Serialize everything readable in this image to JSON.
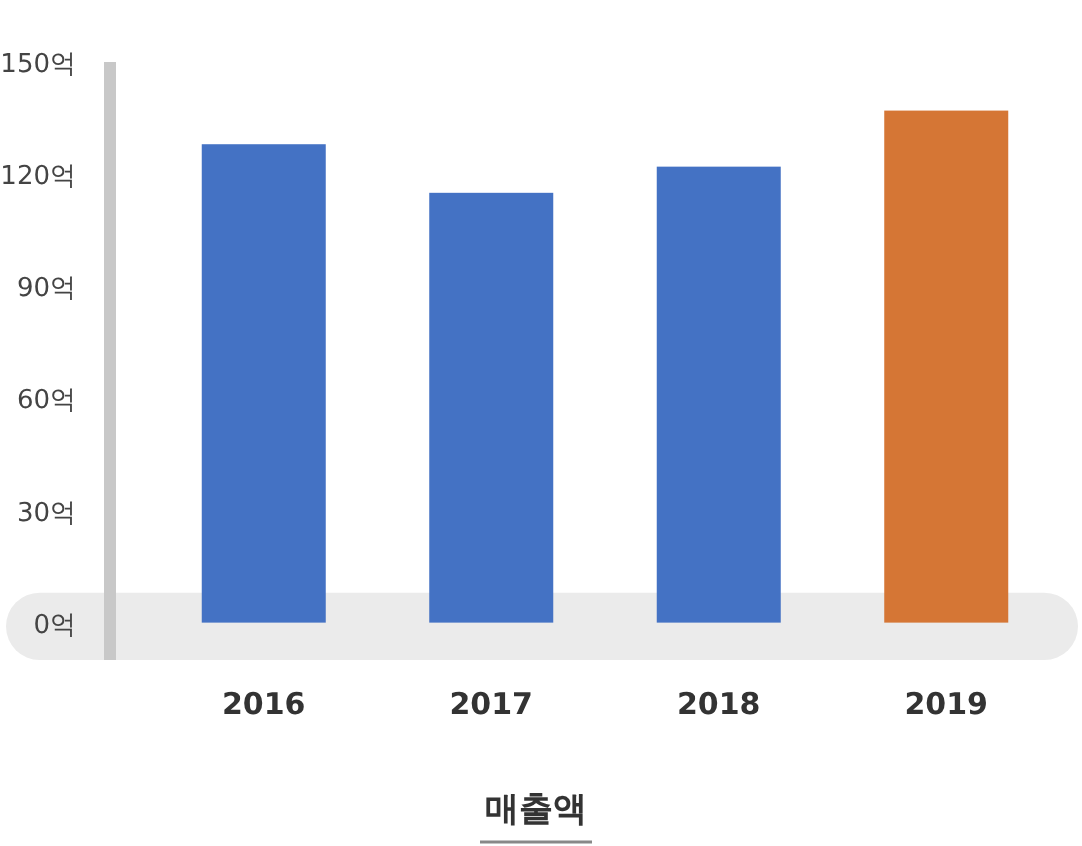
{
  "chart_data": {
    "type": "bar",
    "xlabel": "매출액",
    "categories": [
      "2016",
      "2017",
      "2018",
      "2019"
    ],
    "values": [
      128,
      115,
      122,
      137
    ],
    "colors": [
      "#4472c4",
      "#4472c4",
      "#4472c4",
      "#d57635"
    ],
    "ylim": [
      -10,
      150
    ],
    "bands": [
      {
        "axis": "y",
        "from": -10,
        "to": 8,
        "color": "#ebebeb"
      }
    ],
    "yticks": [
      {
        "value": 0,
        "label": "0억"
      },
      {
        "value": 30,
        "label": "30억"
      },
      {
        "value": 60,
        "label": "60억"
      },
      {
        "value": 90,
        "label": "90억"
      },
      {
        "value": 120,
        "label": "120억"
      },
      {
        "value": 150,
        "label": "150억"
      }
    ]
  }
}
